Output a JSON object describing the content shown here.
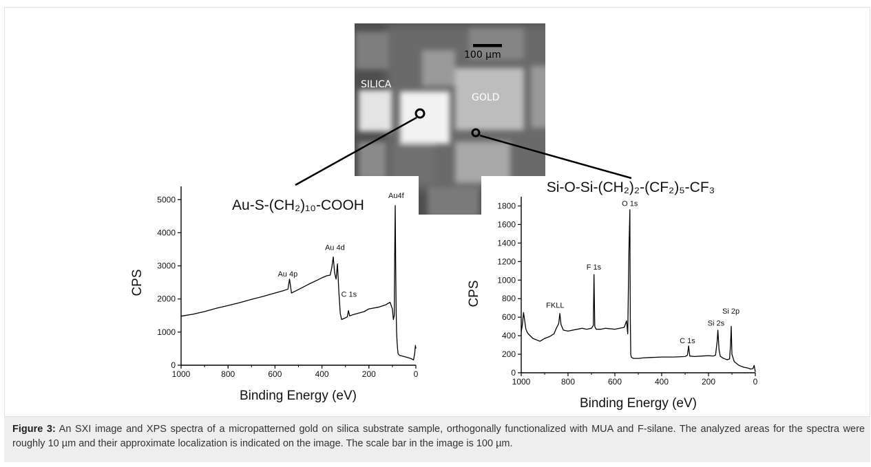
{
  "sxi_image": {
    "scale_bar_label": "100 µm",
    "silica_label": "SILICA",
    "gold_label": "GOLD"
  },
  "chart_data": [
    {
      "type": "line",
      "title": "Au-S-(CH₂)₁₀-COOH",
      "xlabel": "Binding Energy (eV)",
      "ylabel": "CPS",
      "xlim": [
        1000,
        0
      ],
      "ylim": [
        0,
        5400
      ],
      "x_ticks": [
        "1000",
        "800",
        "600",
        "400",
        "200",
        "0"
      ],
      "y_ticks": [
        "0",
        "1000",
        "2000",
        "3000",
        "4000",
        "5000"
      ],
      "series": [
        {
          "x": [
            1000,
            950,
            900,
            850,
            800,
            750,
            700,
            650,
            600,
            560,
            545,
            538,
            530,
            510,
            480,
            450,
            420,
            400,
            380,
            365,
            358,
            352,
            346,
            340,
            334,
            328,
            322,
            316,
            310,
            300,
            292,
            287,
            282,
            270,
            250,
            220,
            200,
            160,
            130,
            110,
            100,
            96,
            92,
            90,
            88,
            86,
            84,
            82,
            80,
            78,
            76,
            70,
            60,
            40,
            20,
            10,
            5,
            2,
            0
          ],
          "y": [
            1480,
            1540,
            1620,
            1720,
            1800,
            1890,
            1990,
            2080,
            2180,
            2260,
            2300,
            2600,
            2180,
            2250,
            2360,
            2470,
            2570,
            2640,
            2700,
            2720,
            2950,
            3270,
            2780,
            2600,
            3060,
            2200,
            1560,
            1380,
            1400,
            1430,
            1460,
            1650,
            1490,
            1520,
            1560,
            1620,
            1700,
            1750,
            1820,
            1900,
            1700,
            1380,
            1500,
            3400,
            4820,
            3000,
            1600,
            1000,
            700,
            500,
            350,
            300,
            280,
            240,
            200,
            160,
            350,
            600,
            500
          ]
        }
      ],
      "annotations": [
        {
          "text": "Au 4p",
          "x": 546,
          "y": 2680
        },
        {
          "text": "Au 4d",
          "x": 345,
          "y": 3480
        },
        {
          "text": "C 1s",
          "x": 285,
          "y": 2070
        },
        {
          "text": "Au4f",
          "x": 84,
          "y": 5050
        }
      ]
    },
    {
      "type": "line",
      "title": "Si-O-Si-(CH₂)₂-(CF₂)₅-CF₃",
      "xlabel": "Binding Energy (eV)",
      "ylabel": "CPS",
      "xlim": [
        1000,
        0
      ],
      "ylim": [
        0,
        1900
      ],
      "x_ticks": [
        "1000",
        "800",
        "600",
        "400",
        "200",
        "0"
      ],
      "y_ticks": [
        "0",
        "200",
        "400",
        "600",
        "800",
        "1000",
        "1200",
        "1400",
        "1600",
        "1800"
      ],
      "series": [
        {
          "x": [
            1000,
            995,
            990,
            985,
            980,
            975,
            970,
            950,
            920,
            900,
            880,
            860,
            850,
            840,
            835,
            830,
            820,
            800,
            780,
            760,
            740,
            720,
            700,
            692,
            689,
            686,
            680,
            660,
            640,
            600,
            580,
            560,
            550,
            545,
            540,
            536,
            534,
            532,
            530,
            525,
            520,
            500,
            480,
            450,
            400,
            350,
            300,
            290,
            285,
            280,
            260,
            230,
            200,
            180,
            170,
            163,
            160,
            155,
            150,
            140,
            130,
            120,
            110,
            106,
            103,
            100,
            90,
            70,
            50,
            30,
            20,
            10,
            5,
            0
          ],
          "y": [
            440,
            520,
            650,
            560,
            470,
            440,
            420,
            370,
            340,
            370,
            390,
            420,
            480,
            530,
            640,
            520,
            460,
            450,
            460,
            470,
            480,
            470,
            480,
            510,
            1060,
            500,
            470,
            470,
            480,
            470,
            480,
            490,
            560,
            420,
            1300,
            1760,
            600,
            200,
            170,
            160,
            155,
            155,
            160,
            165,
            170,
            170,
            175,
            190,
            290,
            180,
            175,
            180,
            185,
            180,
            190,
            340,
            460,
            250,
            180,
            160,
            150,
            140,
            150,
            300,
            500,
            200,
            120,
            80,
            60,
            50,
            40,
            45,
            80,
            10
          ]
        }
      ],
      "annotations": [
        {
          "text": "FKLL",
          "x": 855,
          "y": 700
        },
        {
          "text": "F 1s",
          "x": 690,
          "y": 1115
        },
        {
          "text": "O 1s",
          "x": 536,
          "y": 1800
        },
        {
          "text": "C 1s",
          "x": 290,
          "y": 320
        },
        {
          "text": "Si 2s",
          "x": 168,
          "y": 510
        },
        {
          "text": "Si 2p",
          "x": 104,
          "y": 640
        }
      ]
    }
  ],
  "caption": {
    "label": "Figure 3:",
    "text": " An SXI image and XPS spectra of a micropatterned gold on silica substrate sample, orthogonally functionalized with MUA and F-silane. The analyzed areas for the spectra were roughly 10 µm and their approximate localization is indicated on the image. The scale bar in the image is 100 µm."
  }
}
